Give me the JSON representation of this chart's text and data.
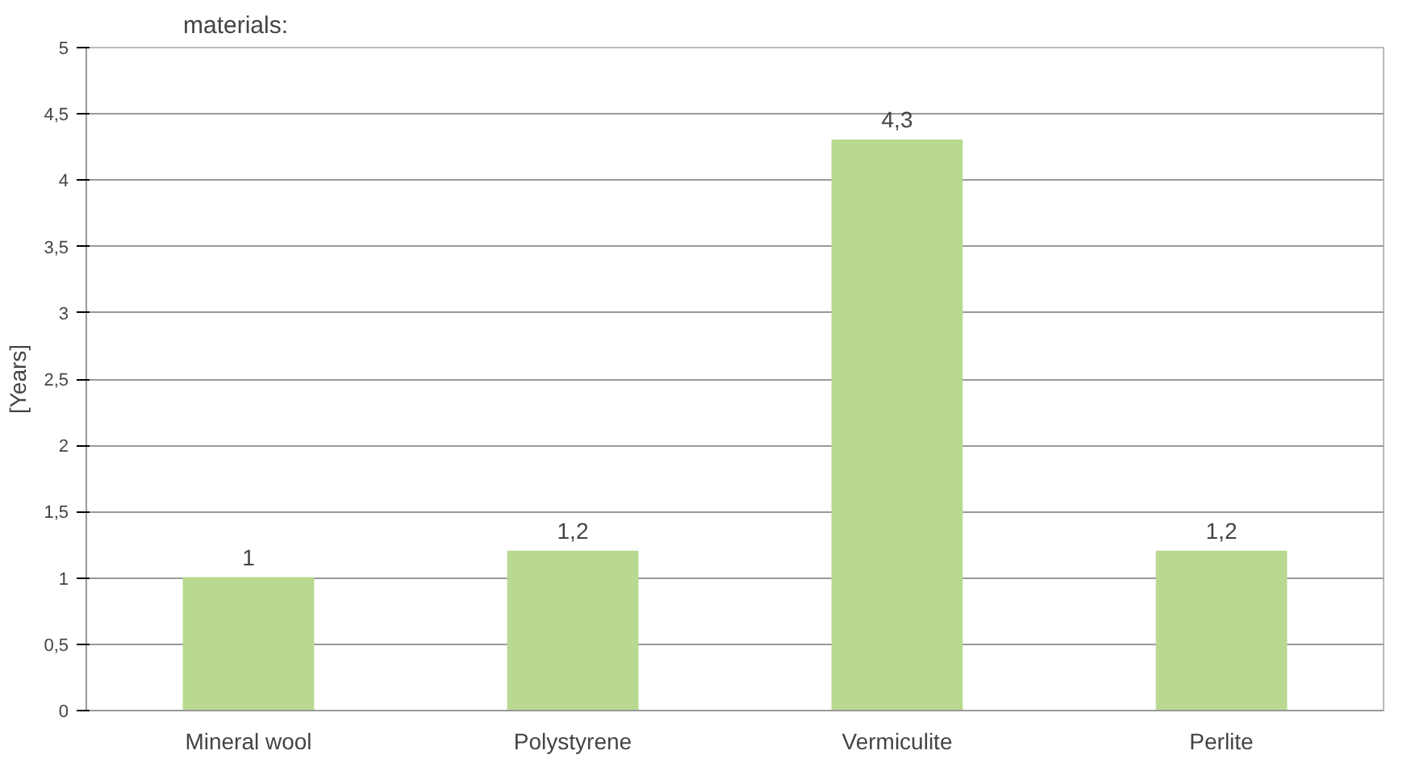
{
  "chart_data": {
    "type": "bar",
    "title": "materials:",
    "ylabel": "[Years]",
    "categories": [
      "Mineral wool",
      "Polystyrene",
      "Vermiculite",
      "Perlite"
    ],
    "values": [
      1,
      1.2,
      4.3,
      1.2
    ],
    "color": "#b8d98f",
    "value_labels": [
      "1",
      "1,2",
      "4,3",
      "1,2"
    ],
    "ylim": [
      0,
      5
    ],
    "yticks": [
      0,
      {
        "value": 0.5,
        "label": "0,5"
      },
      1,
      {
        "value": 1.5,
        "label": "1,5"
      },
      2,
      {
        "value": 2.5,
        "label": "2,5"
      },
      3,
      {
        "value": 3.5,
        "label": "3,5"
      },
      4,
      {
        "value": 4.5,
        "label": "4,5"
      },
      5
    ],
    "grid": "y"
  }
}
